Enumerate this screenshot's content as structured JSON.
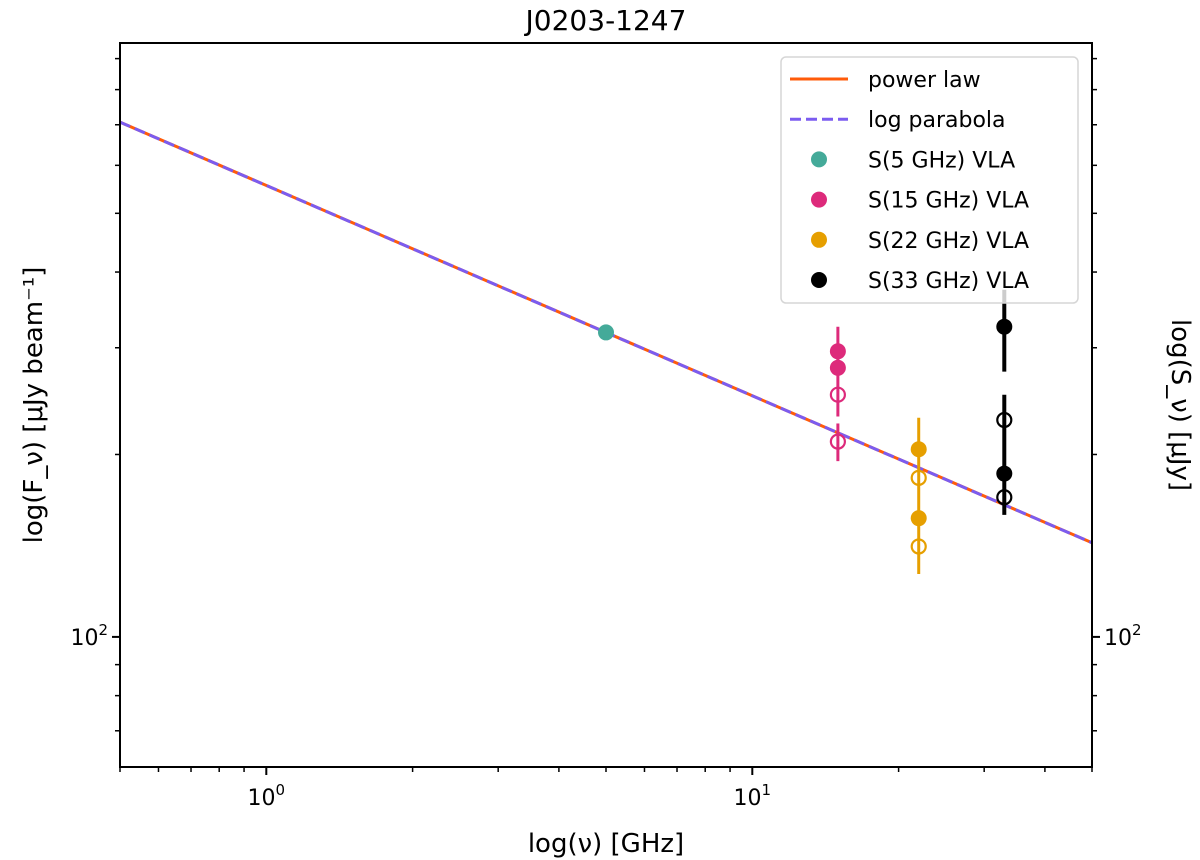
{
  "chart_data": {
    "type": "scatter",
    "title": "J0203-1247",
    "xlabel": "log(ν) [GHz]",
    "ylabel": "log(F_ν) [μJy beam⁻¹]",
    "ylabel_right": "log(S_ν) [μJy]",
    "xscale": "log",
    "yscale": "log",
    "xlim": [
      0.5,
      50
    ],
    "ylim": [
      61,
      955
    ],
    "x_ticks": [
      {
        "value": 1,
        "label": "10",
        "exp": "0"
      },
      {
        "value": 10,
        "label": "10",
        "exp": "1"
      }
    ],
    "y_ticks": [
      {
        "value": 100,
        "label": "10",
        "exp": "2"
      }
    ],
    "grid": false,
    "legend_position": "top-right",
    "lines": [
      {
        "name": "power law",
        "color": "#ff5b0a",
        "style": "solid",
        "x": [
          0.5,
          50
        ],
        "y": [
          707,
          143
        ]
      },
      {
        "name": "log parabola",
        "color": "#7b5cf0",
        "style": "dashed",
        "x": [
          0.5,
          50
        ],
        "y": [
          707,
          143
        ]
      }
    ],
    "series": [
      {
        "name": "S(5 GHz) VLA",
        "color": "#44aa99",
        "x": 5,
        "filled": [
          318
        ],
        "open": [],
        "error_bars": []
      },
      {
        "name": "S(15 GHz) VLA",
        "color": "#dd2a7b",
        "x": 15,
        "filled": [
          296,
          278
        ],
        "open": [
          251,
          210
        ],
        "error_bars": [
          [
            231,
            325
          ],
          [
            195,
            225
          ]
        ]
      },
      {
        "name": "S(22 GHz) VLA",
        "color": "#e69f00",
        "x": 22,
        "filled": [
          204,
          157
        ],
        "open": [
          183,
          141
        ],
        "error_bars": [
          [
            127,
            230
          ]
        ]
      },
      {
        "name": "S(33 GHz) VLA",
        "color": "#000000",
        "x": 33,
        "filled": [
          325,
          186
        ],
        "open": [
          228,
          170
        ],
        "error_bars": [
          [
            274,
            374
          ],
          [
            159,
            251
          ]
        ]
      }
    ]
  }
}
